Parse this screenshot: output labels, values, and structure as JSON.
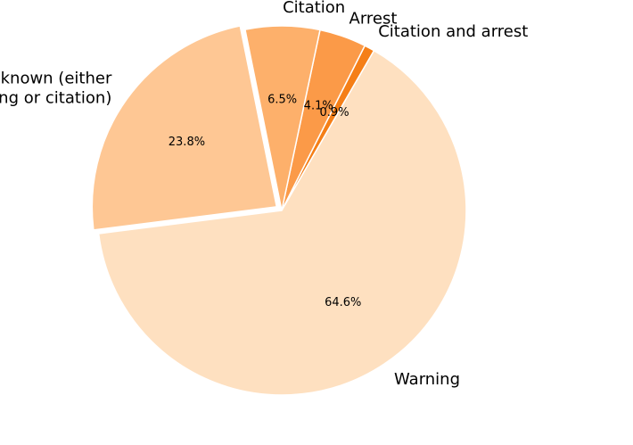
{
  "chart_data": {
    "type": "pie",
    "title": "",
    "slices": [
      {
        "label": "Citation and arrest",
        "value": 0.9,
        "pct_label": "0.9%",
        "color": "#f57f17"
      },
      {
        "label": "Arrest",
        "value": 4.1,
        "pct_label": "4.1%",
        "color": "#fb9a48"
      },
      {
        "label": "Citation",
        "value": 6.5,
        "pct_label": "6.5%",
        "color": "#fdb06b"
      },
      {
        "label": "Unknown (either\nwarning or citation)",
        "value": 23.8,
        "pct_label": "23.8%",
        "color": "#fec794"
      },
      {
        "label": "Warning",
        "value": 64.6,
        "pct_label": "64.6%",
        "color": "#fee0c0"
      }
    ],
    "explode": {
      "slice": "Unknown (either\nwarning or citation)"
    },
    "legend": "none"
  }
}
